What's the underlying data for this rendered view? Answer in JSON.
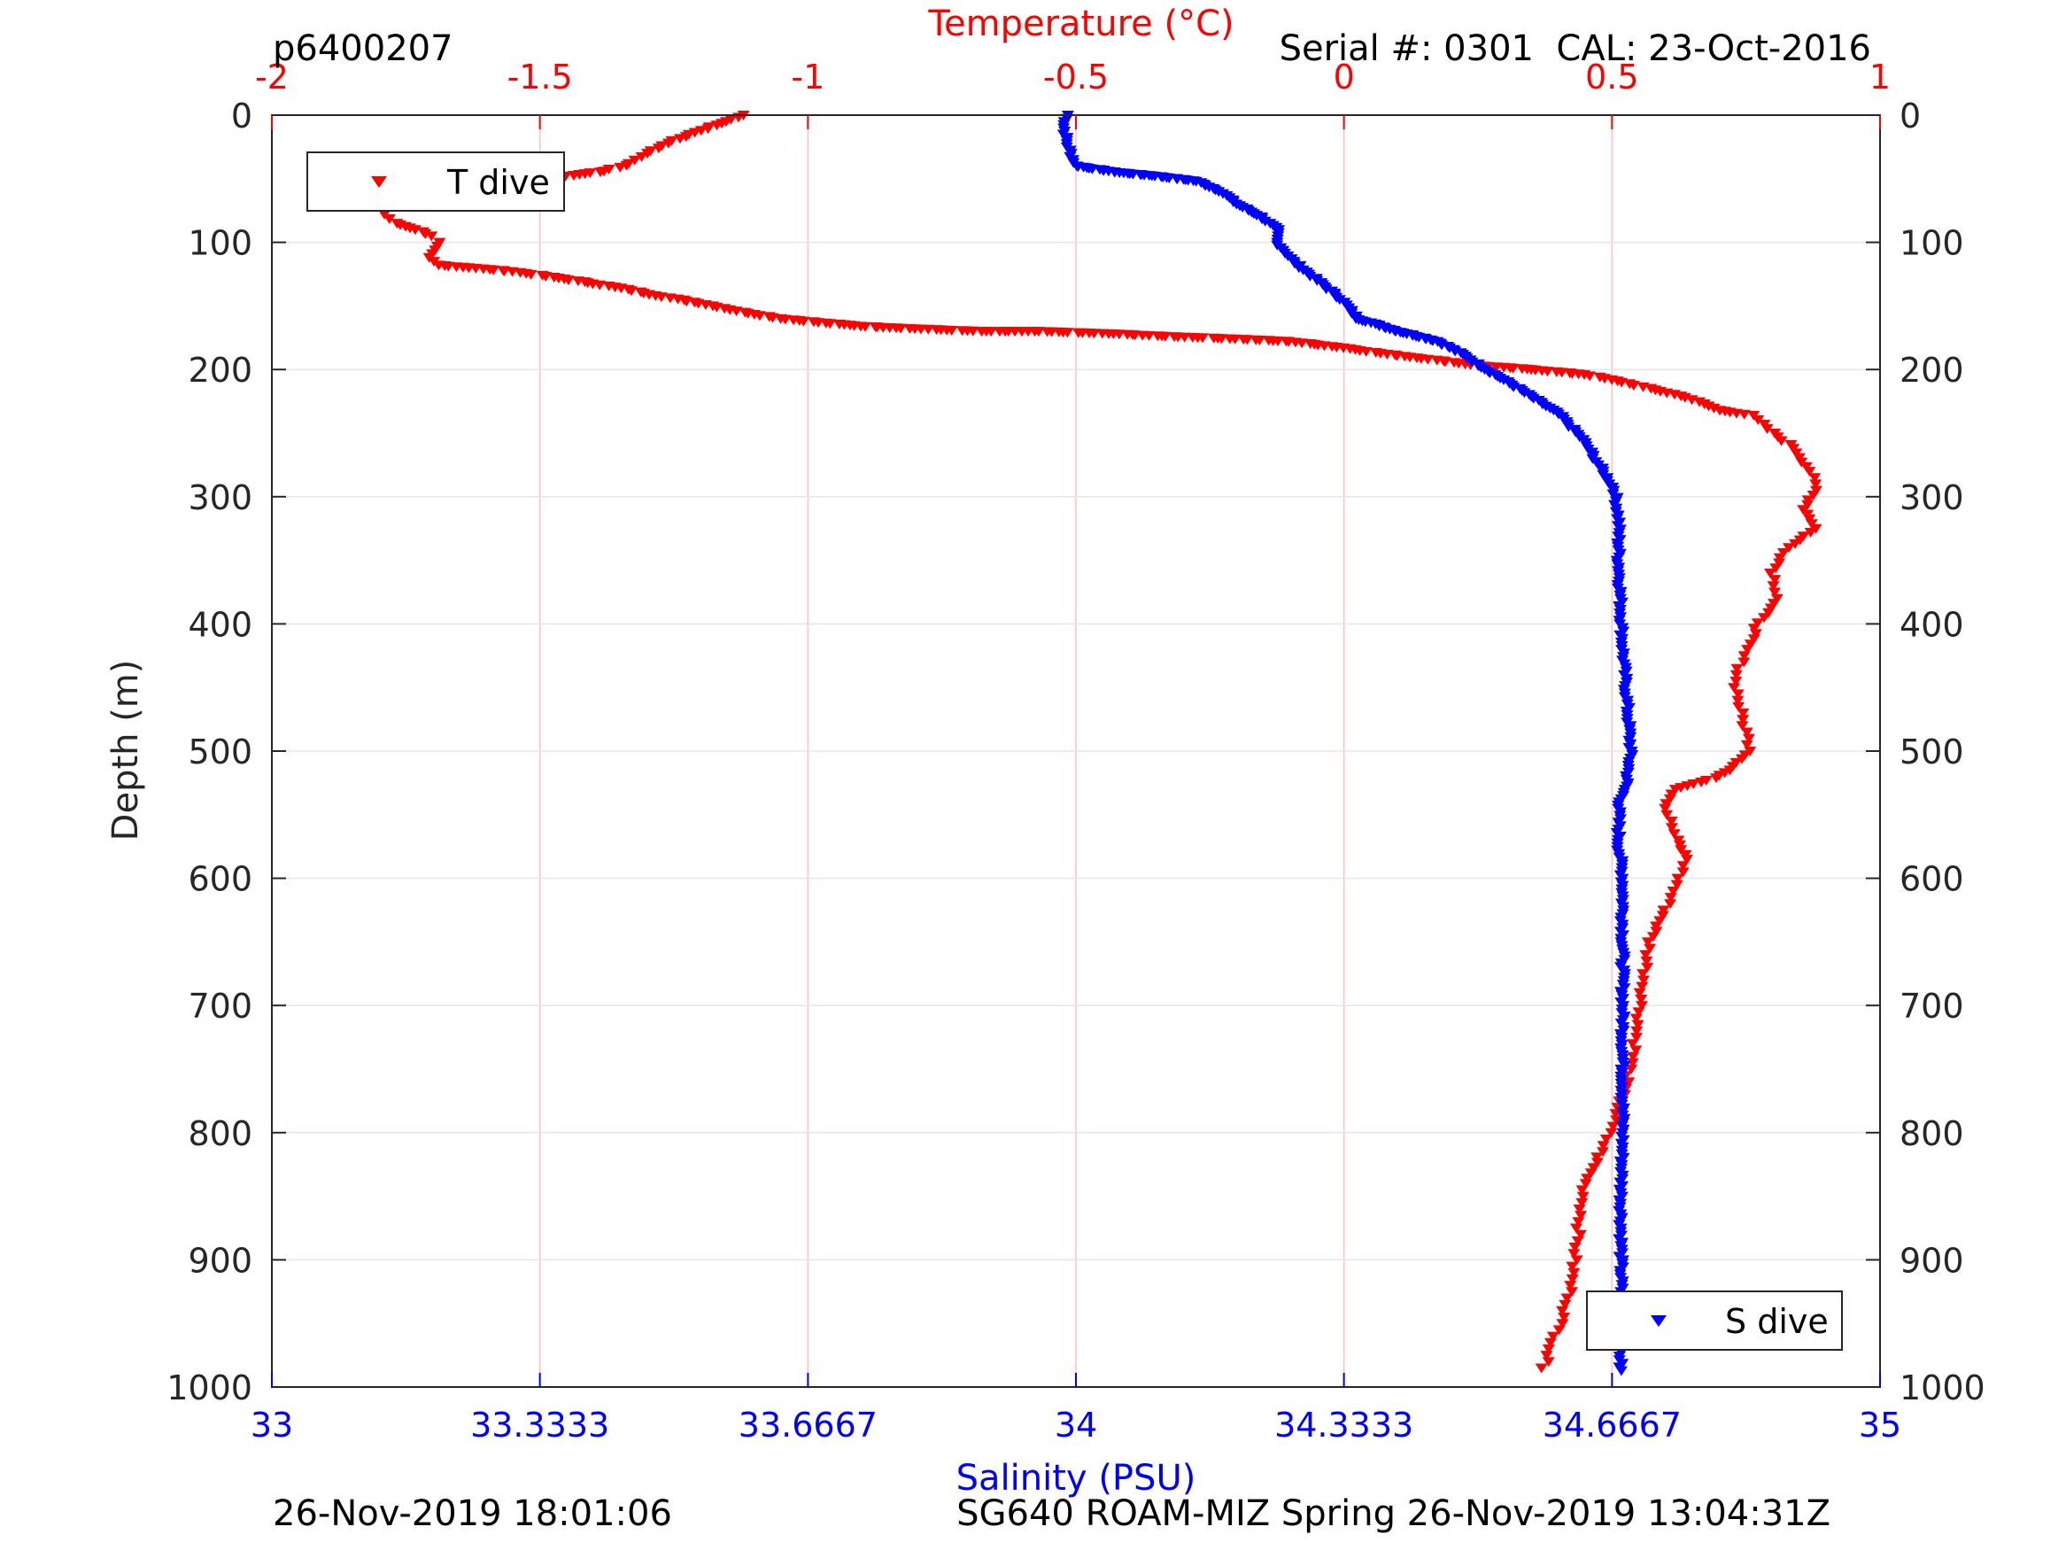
{
  "header": {
    "profile_id": "p6400207",
    "serial": "Serial #: 0301  CAL: 23-Oct-2016"
  },
  "footer": {
    "left": "26-Nov-2019 18:01:06",
    "right": "SG640 ROAM-MIZ Spring 26-Nov-2019 13:04:31Z"
  },
  "colors": {
    "temperature": "#ff0000",
    "salinity": "#0000ff",
    "axis": "#262626",
    "grid": "#ffc0c0"
  },
  "chart_data": {
    "type": "scatter",
    "y_axis": {
      "label": "Depth (m)",
      "ylim": [
        1000,
        0
      ],
      "reversed": true,
      "ticks": [
        "0",
        "100",
        "200",
        "300",
        "400",
        "500",
        "600",
        "700",
        "800",
        "900",
        "1000"
      ],
      "tick_values": [
        0,
        100,
        200,
        300,
        400,
        500,
        600,
        700,
        800,
        900,
        1000
      ]
    },
    "x_top": {
      "label": "Temperature (°C)",
      "xlim": [
        -2,
        1
      ],
      "ticks": [
        "-2",
        "-1.5",
        "-1",
        "-0.5",
        "0",
        "0.5",
        "1"
      ],
      "tick_values": [
        -2,
        -1.5,
        -1,
        -0.5,
        0,
        0.5,
        1
      ]
    },
    "x_bottom": {
      "label": "Salinity (PSU)",
      "xlim": [
        33,
        35
      ],
      "ticks": [
        "33",
        "33.3333",
        "33.6667",
        "34",
        "34.3333",
        "34.6667",
        "35"
      ],
      "tick_values": [
        33,
        33.3333,
        33.6667,
        34,
        34.3333,
        34.6667,
        35
      ]
    },
    "grid": "vertical, temperature axis",
    "legend_top": {
      "label": "T dive",
      "placement": "top-left"
    },
    "legend_bottom": {
      "label": "S dive",
      "placement": "bottom-right"
    },
    "series": [
      {
        "name": "T dive",
        "axis": "temperature",
        "marker": "triangle-down",
        "points": [
          [
            -1.12,
            0
          ],
          [
            -1.15,
            5
          ],
          [
            -1.2,
            12
          ],
          [
            -1.25,
            20
          ],
          [
            -1.3,
            30
          ],
          [
            -1.33,
            38
          ],
          [
            -1.38,
            44
          ],
          [
            -1.45,
            48
          ],
          [
            -1.55,
            50
          ],
          [
            -1.65,
            54
          ],
          [
            -1.72,
            58
          ],
          [
            -1.76,
            62
          ],
          [
            -1.78,
            70
          ],
          [
            -1.79,
            78
          ],
          [
            -1.77,
            85
          ],
          [
            -1.73,
            90
          ],
          [
            -1.7,
            95
          ],
          [
            -1.69,
            100
          ],
          [
            -1.7,
            106
          ],
          [
            -1.71,
            112
          ],
          [
            -1.69,
            118
          ],
          [
            -1.63,
            120
          ],
          [
            -1.55,
            123
          ],
          [
            -1.5,
            126
          ],
          [
            -1.42,
            131
          ],
          [
            -1.35,
            136
          ],
          [
            -1.28,
            142
          ],
          [
            -1.2,
            148
          ],
          [
            -1.12,
            155
          ],
          [
            -1.05,
            160
          ],
          [
            -0.98,
            163
          ],
          [
            -0.9,
            166
          ],
          [
            -0.8,
            168
          ],
          [
            -0.68,
            170
          ],
          [
            -0.57,
            170
          ],
          [
            -0.43,
            172
          ],
          [
            -0.33,
            174
          ],
          [
            -0.2,
            176
          ],
          [
            -0.1,
            178
          ],
          [
            0.0,
            183
          ],
          [
            0.08,
            188
          ],
          [
            0.16,
            192
          ],
          [
            0.25,
            197
          ],
          [
            0.35,
            200
          ],
          [
            0.45,
            204
          ],
          [
            0.52,
            210
          ],
          [
            0.58,
            216
          ],
          [
            0.64,
            222
          ],
          [
            0.7,
            232
          ],
          [
            0.76,
            236
          ],
          [
            0.8,
            250
          ],
          [
            0.84,
            262
          ],
          [
            0.87,
            280
          ],
          [
            0.88,
            295
          ],
          [
            0.86,
            310
          ],
          [
            0.88,
            325
          ],
          [
            0.83,
            340
          ],
          [
            0.8,
            360
          ],
          [
            0.81,
            380
          ],
          [
            0.78,
            395
          ],
          [
            0.75,
            420
          ],
          [
            0.73,
            445
          ],
          [
            0.74,
            470
          ],
          [
            0.76,
            500
          ],
          [
            0.72,
            515
          ],
          [
            0.68,
            523
          ],
          [
            0.62,
            530
          ],
          [
            0.6,
            545
          ],
          [
            0.62,
            570
          ],
          [
            0.64,
            585
          ],
          [
            0.62,
            605
          ],
          [
            0.6,
            625
          ],
          [
            0.57,
            650
          ],
          [
            0.56,
            680
          ],
          [
            0.55,
            710
          ],
          [
            0.54,
            740
          ],
          [
            0.52,
            770
          ],
          [
            0.5,
            795
          ],
          [
            0.48,
            815
          ],
          [
            0.45,
            840
          ],
          [
            0.44,
            870
          ],
          [
            0.43,
            900
          ],
          [
            0.42,
            930
          ],
          [
            0.4,
            955
          ],
          [
            0.38,
            975
          ],
          [
            0.37,
            990
          ]
        ]
      },
      {
        "name": "S dive",
        "axis": "salinity",
        "marker": "triangle-down",
        "points": [
          [
            33.99,
            0
          ],
          [
            33.985,
            10
          ],
          [
            33.99,
            25
          ],
          [
            34.0,
            40
          ],
          [
            34.05,
            45
          ],
          [
            34.1,
            48
          ],
          [
            34.15,
            52
          ],
          [
            34.18,
            60
          ],
          [
            34.2,
            70
          ],
          [
            34.23,
            80
          ],
          [
            34.25,
            90
          ],
          [
            34.25,
            100
          ],
          [
            34.27,
            115
          ],
          [
            34.3,
            130
          ],
          [
            34.33,
            145
          ],
          [
            34.35,
            160
          ],
          [
            34.4,
            170
          ],
          [
            34.45,
            178
          ],
          [
            34.48,
            188
          ],
          [
            34.51,
            200
          ],
          [
            34.55,
            215
          ],
          [
            34.6,
            235
          ],
          [
            34.63,
            255
          ],
          [
            34.65,
            275
          ],
          [
            34.67,
            295
          ],
          [
            34.675,
            320
          ],
          [
            34.675,
            350
          ],
          [
            34.677,
            380
          ],
          [
            34.68,
            420
          ],
          [
            34.685,
            460
          ],
          [
            34.69,
            500
          ],
          [
            34.685,
            525
          ],
          [
            34.675,
            545
          ],
          [
            34.675,
            575
          ],
          [
            34.68,
            600
          ],
          [
            34.68,
            650
          ],
          [
            34.68,
            700
          ],
          [
            34.68,
            750
          ],
          [
            34.68,
            800
          ],
          [
            34.678,
            850
          ],
          [
            34.678,
            900
          ],
          [
            34.678,
            950
          ],
          [
            34.677,
            990
          ]
        ]
      }
    ]
  }
}
